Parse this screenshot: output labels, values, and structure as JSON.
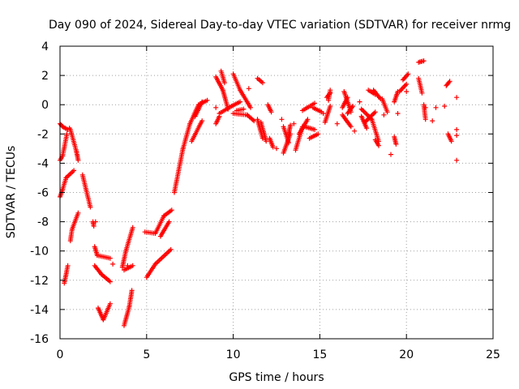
{
  "chart_data": {
    "type": "scatter",
    "title": "Day 090 of 2024, Sidereal Day-to-day VTEC variation (SDTVAR) for receiver nrmg",
    "xlabel": "GPS time / hours",
    "ylabel": "SDTVAR / TECUs",
    "xlim": [
      0,
      25
    ],
    "ylim": [
      -16,
      4
    ],
    "xticks": [
      "0",
      "5",
      "10",
      "15",
      "20",
      "25"
    ],
    "xtick_values": [
      0,
      5,
      10,
      15,
      20,
      25
    ],
    "yticks": [
      "4",
      "2",
      "0",
      "-2",
      "-4",
      "-6",
      "-8",
      "-10",
      "-12",
      "-14",
      "-16"
    ],
    "ytick_values": [
      4,
      2,
      0,
      -2,
      -4,
      -6,
      -8,
      -10,
      -12,
      -14,
      -16
    ],
    "grid": true,
    "marker": "+",
    "color": "#ff0000",
    "segments": [
      [
        0.0,
        -1.3,
        0.15,
        -1.5
      ],
      [
        0.15,
        -1.5,
        0.45,
        -1.7
      ],
      [
        0.0,
        -6.3,
        0.15,
        -5.8
      ],
      [
        0.0,
        -3.8,
        0.15,
        -3.5
      ],
      [
        0.15,
        -3.5,
        0.4,
        -2.0
      ],
      [
        0.15,
        -5.8,
        0.35,
        -5.0
      ],
      [
        0.35,
        -5.0,
        0.8,
        -4.5
      ],
      [
        0.25,
        -12.2,
        0.45,
        -11.0
      ],
      [
        0.6,
        -9.3,
        0.7,
        -8.5
      ],
      [
        0.7,
        -8.5,
        1.05,
        -7.4
      ],
      [
        0.6,
        -1.7,
        0.95,
        -3.2
      ],
      [
        0.95,
        -3.2,
        1.05,
        -3.8
      ],
      [
        1.3,
        -4.8,
        1.75,
        -7.0
      ],
      [
        1.9,
        -8.0,
        1.95,
        -8.3
      ],
      [
        2.0,
        -9.7,
        2.15,
        -10.3
      ],
      [
        2.15,
        -10.3,
        2.9,
        -10.5
      ],
      [
        2.0,
        -11.0,
        2.4,
        -11.6
      ],
      [
        2.4,
        -11.6,
        2.9,
        -12.1
      ],
      [
        2.2,
        -13.9,
        2.5,
        -14.7
      ],
      [
        2.5,
        -14.7,
        2.9,
        -13.6
      ],
      [
        3.7,
        -15.1,
        4.0,
        -13.8
      ],
      [
        4.0,
        -13.8,
        4.15,
        -12.7
      ],
      [
        3.6,
        -11.1,
        3.8,
        -10.0
      ],
      [
        3.8,
        -10.0,
        4.2,
        -8.4
      ],
      [
        3.7,
        -11.3,
        4.2,
        -11.0
      ],
      [
        4.9,
        -8.7,
        5.5,
        -8.8
      ],
      [
        5.5,
        -8.8,
        6.0,
        -7.6
      ],
      [
        6.0,
        -7.6,
        6.45,
        -7.2
      ],
      [
        5.0,
        -11.8,
        5.5,
        -10.9
      ],
      [
        5.5,
        -10.9,
        6.4,
        -9.9
      ],
      [
        5.8,
        -9.0,
        6.3,
        -8.0
      ],
      [
        6.6,
        -6.0,
        7.1,
        -3.0
      ],
      [
        7.1,
        -3.0,
        7.5,
        -1.3
      ],
      [
        7.5,
        -1.3,
        8.0,
        0.0
      ],
      [
        8.0,
        0.0,
        8.5,
        0.3
      ],
      [
        7.6,
        -2.5,
        8.2,
        -1.1
      ],
      [
        7.8,
        -0.8,
        8.2,
        0.2
      ],
      [
        9.0,
        1.9,
        9.4,
        1.0
      ],
      [
        9.4,
        1.0,
        9.7,
        -0.3
      ],
      [
        9.2,
        -0.6,
        9.9,
        -0.1
      ],
      [
        9.9,
        -0.1,
        10.4,
        0.2
      ],
      [
        9.3,
        2.3,
        9.5,
        1.5
      ],
      [
        10.0,
        2.1,
        10.4,
        1.0
      ],
      [
        10.4,
        1.0,
        11.0,
        -0.2
      ],
      [
        10.0,
        -0.6,
        10.8,
        -0.7
      ],
      [
        10.8,
        -0.7,
        11.2,
        -1.1
      ],
      [
        9.0,
        -1.3,
        9.2,
        -0.8
      ],
      [
        10.2,
        -0.4,
        10.6,
        -0.3
      ],
      [
        11.4,
        1.8,
        11.7,
        1.5
      ],
      [
        11.4,
        -1.0,
        11.7,
        -2.3
      ],
      [
        11.6,
        -1.2,
        11.9,
        -2.5
      ],
      [
        12.1,
        -2.3,
        12.3,
        -2.9
      ],
      [
        12.0,
        0.0,
        12.2,
        -0.5
      ],
      [
        12.9,
        -3.3,
        13.3,
        -2.0
      ],
      [
        13.2,
        -2.0,
        13.3,
        -1.4
      ],
      [
        12.9,
        -1.5,
        13.2,
        -2.6
      ],
      [
        13.6,
        -3.1,
        14.0,
        -1.5
      ],
      [
        13.8,
        -2.0,
        14.3,
        -1.0
      ],
      [
        14.0,
        -0.4,
        14.7,
        0.1
      ],
      [
        14.6,
        -0.2,
        15.1,
        -0.5
      ],
      [
        14.1,
        -1.5,
        14.7,
        -1.7
      ],
      [
        14.4,
        -2.3,
        14.9,
        -2.0
      ],
      [
        15.3,
        -1.2,
        15.6,
        -0.1
      ],
      [
        15.5,
        0.3,
        15.6,
        1.0
      ],
      [
        15.4,
        0.5,
        15.6,
        0.8
      ],
      [
        16.3,
        -0.2,
        16.6,
        0.5
      ],
      [
        16.4,
        0.9,
        16.8,
        -0.5
      ],
      [
        16.3,
        -0.7,
        16.8,
        -1.5
      ],
      [
        16.6,
        -0.6,
        16.9,
        -0.1
      ],
      [
        17.4,
        -0.8,
        17.7,
        -1.6
      ],
      [
        17.6,
        -1.2,
        18.2,
        -0.5
      ],
      [
        17.4,
        -0.3,
        18.0,
        -1.0
      ],
      [
        17.8,
        1.0,
        18.2,
        0.7
      ],
      [
        18.0,
        -1.0,
        18.4,
        -2.5
      ],
      [
        18.2,
        -2.4,
        18.4,
        -2.8
      ],
      [
        18.1,
        1.0,
        18.5,
        0.4
      ],
      [
        18.6,
        0.4,
        18.9,
        -0.5
      ],
      [
        19.3,
        0.2,
        19.5,
        0.9
      ],
      [
        19.6,
        0.9,
        20.0,
        1.4
      ],
      [
        19.8,
        1.7,
        20.1,
        2.1
      ],
      [
        19.3,
        -2.2,
        19.4,
        -2.7
      ],
      [
        20.7,
        2.9,
        21.0,
        3.0
      ],
      [
        20.7,
        1.8,
        20.9,
        0.8
      ],
      [
        21.0,
        0.0,
        21.1,
        -1.0
      ],
      [
        22.3,
        1.3,
        22.5,
        1.6
      ],
      [
        22.4,
        -2.0,
        22.6,
        -2.5
      ]
    ],
    "points": [
      [
        0.55,
        -1.6
      ],
      [
        2.05,
        -8.0
      ],
      [
        3.05,
        -10.9
      ],
      [
        3.9,
        -11.0
      ],
      [
        9.0,
        -0.2
      ],
      [
        12.5,
        -3.0
      ],
      [
        16.0,
        -1.3
      ],
      [
        17.0,
        -1.8
      ],
      [
        18.7,
        -0.7
      ],
      [
        19.1,
        -3.4
      ],
      [
        19.5,
        -0.6
      ],
      [
        20.0,
        0.9
      ],
      [
        21.5,
        -1.1
      ],
      [
        21.1,
        -0.2
      ],
      [
        21.7,
        -0.2
      ],
      [
        22.2,
        -0.1
      ],
      [
        22.9,
        0.5
      ],
      [
        22.9,
        -1.7
      ],
      [
        22.9,
        -2.1
      ],
      [
        22.9,
        -3.8
      ],
      [
        13.5,
        -1.3
      ],
      [
        15.2,
        -0.6
      ],
      [
        17.3,
        0.2
      ],
      [
        12.8,
        -1.0
      ],
      [
        10.9,
        1.1
      ]
    ]
  }
}
